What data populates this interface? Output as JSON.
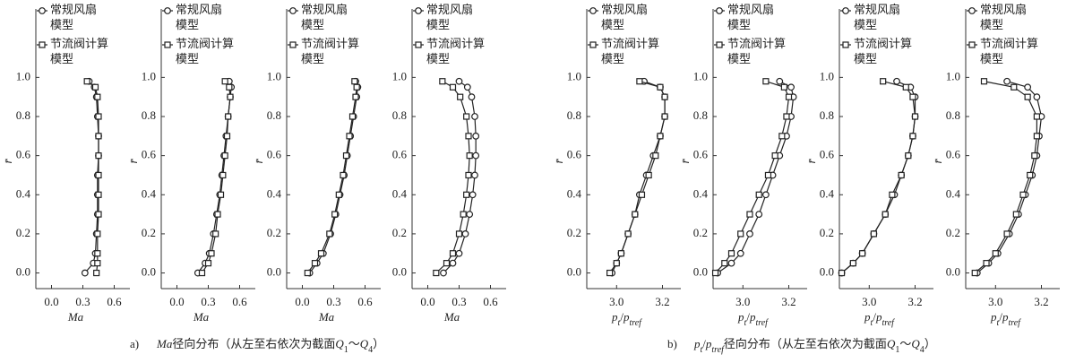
{
  "chart_data": [
    {
      "type": "line",
      "y_label": "r̄",
      "x_label": [
        {
          "t": "Ma",
          "i": true
        }
      ],
      "xlim": [
        -0.15,
        0.75
      ],
      "xticks": [
        {
          "value": 0,
          "label": "0.0"
        },
        0.3,
        0.6
      ],
      "ylim": [
        -0.08,
        1.35
      ],
      "yticks": [
        {
          "value": 0,
          "label": "0.0"
        },
        0.2,
        0.4,
        0.6,
        0.8,
        {
          "value": 1,
          "label": "1.0"
        }
      ],
      "y": [
        0,
        0.05,
        0.1,
        0.2,
        0.3,
        0.4,
        0.5,
        0.6,
        0.7,
        0.8,
        0.9,
        0.95,
        0.98
      ],
      "series": [
        {
          "name": "常规风扇模型",
          "marker": "circle",
          "color": "#222222",
          "x": [
            0.32,
            0.4,
            0.42,
            0.43,
            0.44,
            0.44,
            0.44,
            0.45,
            0.45,
            0.44,
            0.43,
            0.41,
            0.36
          ]
        },
        {
          "name": "节流阀计算模型",
          "marker": "square",
          "color": "#222222",
          "x": [
            0.43,
            0.44,
            0.44,
            0.44,
            0.45,
            0.45,
            0.45,
            0.45,
            0.45,
            0.45,
            0.44,
            0.42,
            0.34
          ]
        }
      ]
    },
    {
      "type": "line",
      "y_label": "r̄",
      "x_label": [
        {
          "t": "Ma",
          "i": true
        }
      ],
      "xlim": [
        -0.15,
        0.75
      ],
      "xticks": [
        {
          "value": 0,
          "label": "0.0"
        },
        0.3,
        0.6
      ],
      "ylim": [
        -0.08,
        1.35
      ],
      "yticks": [
        {
          "value": 0,
          "label": "0.0"
        },
        0.2,
        0.4,
        0.6,
        0.8,
        {
          "value": 1,
          "label": "1.0"
        }
      ],
      "y": [
        0,
        0.05,
        0.1,
        0.2,
        0.3,
        0.4,
        0.5,
        0.6,
        0.7,
        0.8,
        0.9,
        0.95,
        0.98
      ],
      "series": [
        {
          "name": "常规风扇模型",
          "marker": "circle",
          "color": "#222222",
          "x": [
            0.2,
            0.27,
            0.31,
            0.35,
            0.38,
            0.41,
            0.43,
            0.45,
            0.47,
            0.49,
            0.51,
            0.52,
            0.5
          ]
        },
        {
          "name": "节流阀计算模型",
          "marker": "square",
          "color": "#222222",
          "x": [
            0.24,
            0.3,
            0.33,
            0.37,
            0.39,
            0.42,
            0.44,
            0.46,
            0.48,
            0.49,
            0.51,
            0.5,
            0.46
          ]
        }
      ]
    },
    {
      "type": "line",
      "y_label": "r̄",
      "x_label": [
        {
          "t": "Ma",
          "i": true
        }
      ],
      "xlim": [
        -0.15,
        0.75
      ],
      "xticks": [
        {
          "value": 0,
          "label": "0.0"
        },
        0.3,
        0.6
      ],
      "ylim": [
        -0.08,
        1.35
      ],
      "yticks": [
        {
          "value": 0,
          "label": "0.0"
        },
        0.2,
        0.4,
        0.6,
        0.8,
        {
          "value": 1,
          "label": "1.0"
        }
      ],
      "y": [
        0,
        0.05,
        0.1,
        0.2,
        0.3,
        0.4,
        0.5,
        0.6,
        0.7,
        0.8,
        0.9,
        0.95,
        0.98
      ],
      "series": [
        {
          "name": "常规风扇模型",
          "marker": "circle",
          "color": "#222222",
          "x": [
            0.07,
            0.14,
            0.2,
            0.27,
            0.32,
            0.36,
            0.4,
            0.43,
            0.46,
            0.49,
            0.52,
            0.53,
            0.51
          ]
        },
        {
          "name": "节流阀计算模型",
          "marker": "square",
          "color": "#222222",
          "x": [
            0.05,
            0.12,
            0.18,
            0.26,
            0.31,
            0.35,
            0.39,
            0.42,
            0.45,
            0.48,
            0.51,
            0.52,
            0.5
          ]
        }
      ]
    },
    {
      "type": "line",
      "x_label": [
        {
          "t": "Ma",
          "i": true
        }
      ],
      "xlim": [
        -0.15,
        0.75
      ],
      "xticks": [
        {
          "value": 0,
          "label": "0.0"
        },
        0.3,
        0.6
      ],
      "ylim": [
        -0.08,
        1.35
      ],
      "yticks": [
        {
          "value": 0,
          "label": "0.0"
        },
        0.2,
        0.4,
        0.6,
        0.8,
        {
          "value": 1,
          "label": "1.0"
        }
      ],
      "y": [
        0,
        0.05,
        0.1,
        0.2,
        0.3,
        0.4,
        0.5,
        0.6,
        0.7,
        0.8,
        0.9,
        0.95,
        0.98
      ],
      "series": [
        {
          "name": "常规风扇模型",
          "marker": "circle",
          "color": "#222222",
          "x": [
            0.15,
            0.24,
            0.3,
            0.36,
            0.4,
            0.43,
            0.45,
            0.46,
            0.46,
            0.45,
            0.42,
            0.38,
            0.3
          ]
        },
        {
          "name": "节流阀计算模型",
          "marker": "square",
          "color": "#222222",
          "x": [
            0.08,
            0.18,
            0.24,
            0.3,
            0.34,
            0.37,
            0.39,
            0.4,
            0.39,
            0.37,
            0.31,
            0.24,
            0.14
          ]
        }
      ]
    },
    {
      "type": "line",
      "y_label": "r̄",
      "x_label": [
        {
          "t": "p",
          "i": true
        },
        {
          "t": "t",
          "i": true,
          "sub": true
        },
        {
          "t": "/"
        },
        {
          "t": "p",
          "i": true
        },
        {
          "t": "tref",
          "i": true,
          "sub": true
        }
      ],
      "xlim": [
        2.87,
        3.28
      ],
      "xticks": [
        {
          "value": 3,
          "label": "3.0"
        },
        3.2
      ],
      "ylim": [
        -0.08,
        1.35
      ],
      "yticks": [
        {
          "value": 0,
          "label": "0.0"
        },
        0.2,
        0.4,
        0.6,
        0.8,
        {
          "value": 1,
          "label": "1.0"
        }
      ],
      "y": [
        0,
        0.05,
        0.1,
        0.2,
        0.3,
        0.4,
        0.5,
        0.6,
        0.7,
        0.8,
        0.9,
        0.95,
        0.98
      ],
      "series": [
        {
          "name": "常规风扇模型",
          "marker": "circle",
          "color": "#222222",
          "x": [
            2.98,
            3.0,
            3.02,
            3.05,
            3.08,
            3.1,
            3.13,
            3.16,
            3.19,
            3.21,
            3.21,
            3.19,
            3.12
          ]
        },
        {
          "name": "节流阀计算模型",
          "marker": "square",
          "color": "#222222",
          "x": [
            2.97,
            3.0,
            3.02,
            3.05,
            3.08,
            3.11,
            3.14,
            3.17,
            3.19,
            3.21,
            3.21,
            3.19,
            3.1
          ]
        }
      ]
    },
    {
      "type": "line",
      "y_label": "r̄",
      "x_label": [
        {
          "t": "p",
          "i": true
        },
        {
          "t": "t",
          "i": true,
          "sub": true
        },
        {
          "t": "/"
        },
        {
          "t": "p",
          "i": true
        },
        {
          "t": "tref",
          "i": true,
          "sub": true
        }
      ],
      "xlim": [
        2.87,
        3.28
      ],
      "xticks": [
        {
          "value": 3,
          "label": "3.0"
        },
        3.2
      ],
      "ylim": [
        -0.08,
        1.35
      ],
      "yticks": [
        {
          "value": 0,
          "label": "0.0"
        },
        0.2,
        0.4,
        0.6,
        0.8,
        {
          "value": 1,
          "label": "1.0"
        }
      ],
      "y": [
        0,
        0.05,
        0.1,
        0.2,
        0.3,
        0.4,
        0.5,
        0.6,
        0.7,
        0.8,
        0.9,
        0.95,
        0.98
      ],
      "series": [
        {
          "name": "常规风扇模型",
          "marker": "circle",
          "color": "#222222",
          "x": [
            2.89,
            2.95,
            2.99,
            3.03,
            3.07,
            3.1,
            3.13,
            3.16,
            3.19,
            3.21,
            3.22,
            3.21,
            3.16
          ]
        },
        {
          "name": "节流阀计算模型",
          "marker": "square",
          "color": "#222222",
          "x": [
            2.88,
            2.92,
            2.95,
            2.99,
            3.03,
            3.07,
            3.11,
            3.14,
            3.17,
            3.19,
            3.2,
            3.18,
            3.1
          ]
        }
      ]
    },
    {
      "type": "line",
      "y_label": "r̄",
      "x_label": [
        {
          "t": "p",
          "i": true
        },
        {
          "t": "t",
          "i": true,
          "sub": true
        },
        {
          "t": "/"
        },
        {
          "t": "p",
          "i": true
        },
        {
          "t": "tref",
          "i": true,
          "sub": true
        }
      ],
      "xlim": [
        2.87,
        3.28
      ],
      "xticks": [
        {
          "value": 3,
          "label": "3.0"
        },
        3.2
      ],
      "ylim": [
        -0.08,
        1.35
      ],
      "yticks": [
        {
          "value": 0,
          "label": "0.0"
        },
        0.2,
        0.4,
        0.6,
        0.8,
        {
          "value": 1,
          "label": "1.0"
        }
      ],
      "y": [
        0,
        0.05,
        0.1,
        0.2,
        0.3,
        0.4,
        0.5,
        0.6,
        0.7,
        0.8,
        0.9,
        0.95,
        0.98
      ],
      "series": [
        {
          "name": "常规风扇模型",
          "marker": "circle",
          "color": "#222222",
          "x": [
            2.88,
            2.93,
            2.97,
            3.02,
            3.07,
            3.11,
            3.14,
            3.17,
            3.19,
            3.2,
            3.2,
            3.18,
            3.12
          ]
        },
        {
          "name": "节流阀计算模型",
          "marker": "square",
          "color": "#222222",
          "x": [
            2.88,
            2.93,
            2.97,
            3.02,
            3.07,
            3.1,
            3.14,
            3.17,
            3.19,
            3.2,
            3.19,
            3.16,
            3.06
          ]
        }
      ]
    },
    {
      "type": "line",
      "y_label": "r̄",
      "x_label": [
        {
          "t": "p",
          "i": true
        },
        {
          "t": "t",
          "i": true,
          "sub": true
        },
        {
          "t": "/"
        },
        {
          "t": "p",
          "i": true
        },
        {
          "t": "tref",
          "i": true,
          "sub": true
        }
      ],
      "xlim": [
        2.87,
        3.28
      ],
      "xticks": [
        {
          "value": 3,
          "label": "3.0"
        },
        3.2
      ],
      "ylim": [
        -0.08,
        1.35
      ],
      "yticks": [
        {
          "value": 0,
          "label": "0.0"
        },
        0.2,
        0.4,
        0.6,
        0.8,
        {
          "value": 1,
          "label": "1.0"
        }
      ],
      "y": [
        0,
        0.05,
        0.1,
        0.2,
        0.3,
        0.4,
        0.5,
        0.6,
        0.7,
        0.8,
        0.9,
        0.95,
        0.98
      ],
      "series": [
        {
          "name": "常规风扇模型",
          "marker": "circle",
          "color": "#222222",
          "x": [
            2.92,
            2.97,
            3.01,
            3.06,
            3.1,
            3.13,
            3.16,
            3.18,
            3.19,
            3.2,
            3.18,
            3.14,
            3.05
          ]
        },
        {
          "name": "节流阀计算模型",
          "marker": "square",
          "color": "#222222",
          "x": [
            2.91,
            2.96,
            3.0,
            3.05,
            3.09,
            3.12,
            3.15,
            3.17,
            3.18,
            3.18,
            3.14,
            3.08,
            2.95
          ]
        }
      ]
    }
  ],
  "captions": [
    {
      "label": "a)",
      "parts": [
        {
          "t": "Ma",
          "i": true
        },
        {
          "t": "径向分布（从左至右依次为截面"
        },
        {
          "t": "Q",
          "i": true
        },
        {
          "t": "1",
          "sub": true
        },
        {
          "t": "～"
        },
        {
          "t": "Q",
          "i": true
        },
        {
          "t": "4",
          "sub": true
        },
        {
          "t": "）"
        }
      ]
    },
    {
      "label": "b)",
      "parts": [
        {
          "t": "p",
          "i": true
        },
        {
          "t": "t",
          "i": true,
          "sub": true
        },
        {
          "t": "/"
        },
        {
          "t": "p",
          "i": true
        },
        {
          "t": "tref",
          "i": true,
          "sub": true
        },
        {
          "t": "径向分布（从左至右依次为截面"
        },
        {
          "t": "Q",
          "i": true
        },
        {
          "t": "1",
          "sub": true
        },
        {
          "t": "～"
        },
        {
          "t": "Q",
          "i": true
        },
        {
          "t": "4",
          "sub": true
        },
        {
          "t": "）"
        }
      ]
    }
  ]
}
